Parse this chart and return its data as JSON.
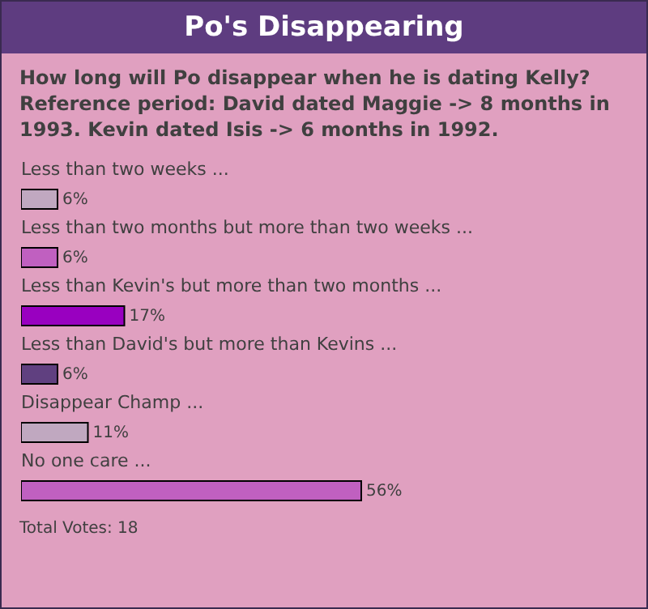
{
  "chart_data": {
    "type": "bar",
    "orientation": "horizontal",
    "title": "Po's Disappearing",
    "subtitle": "How long will Po disappear when he is dating Kelly? Reference period: David dated Maggie -> 8 months in 1993. Kevin dated Isis -> 6 months in 1992.",
    "categories": [
      "Less than two weeks ...",
      "Less than two months but more than two weeks ...",
      "Less than Kevin's but more than two months ...",
      "Less than David's but more than Kevins ...",
      "Disappear Champ ...",
      "No one care ..."
    ],
    "values": [
      6,
      6,
      17,
      6,
      11,
      56
    ],
    "colors": [
      "#c0a8c0",
      "#c060c0",
      "#9900c0",
      "#604080",
      "#c0a8c0",
      "#c060c0"
    ],
    "value_labels": [
      "6%",
      "6%",
      "17%",
      "6%",
      "11%",
      "56%"
    ],
    "grid": false,
    "annotations": [
      "Total Votes: 18"
    ]
  }
}
